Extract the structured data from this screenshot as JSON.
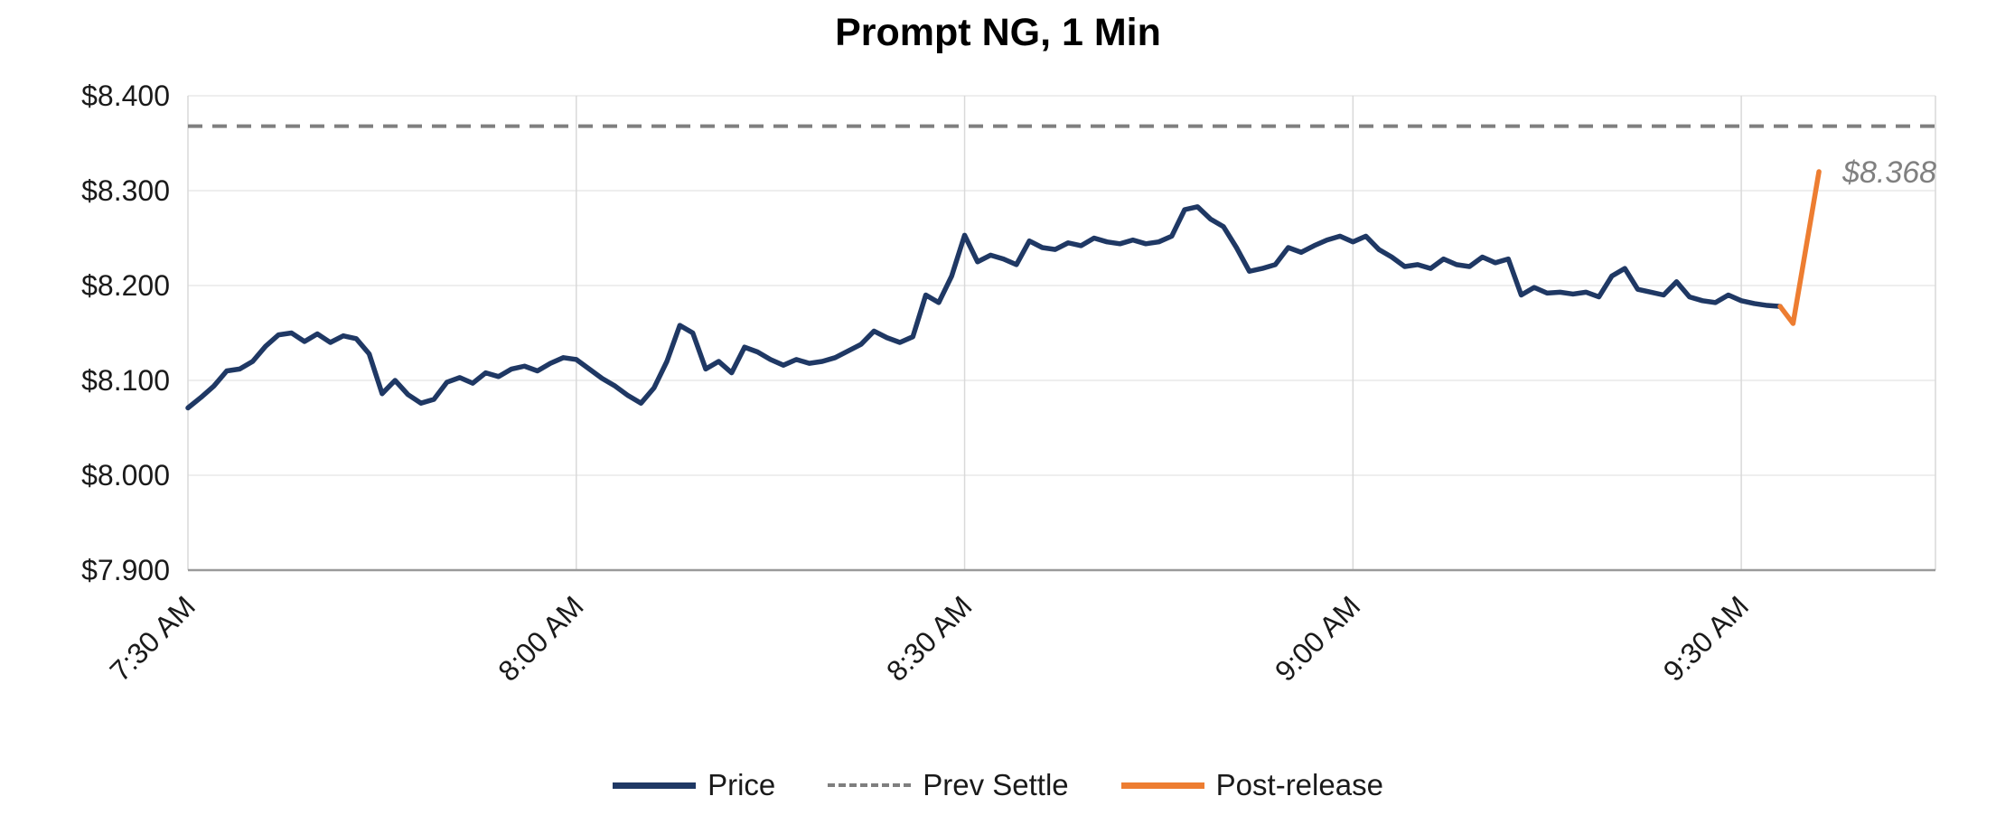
{
  "title": "Prompt NG, 1 Min",
  "colors": {
    "price": "#1F3864",
    "prev_settle": "#7F7F7F",
    "post_release": "#ED7D31",
    "gridline_v": "#D9D9D9",
    "gridline_h": "#E8E8E8",
    "axis": "#9A9A9A",
    "tick_text": "#1A1A1A",
    "annotation": "#808080"
  },
  "legend": {
    "items": [
      {
        "name": "price",
        "label": "Price",
        "style": "solid"
      },
      {
        "name": "prev_settle",
        "label": "Prev Settle",
        "style": "dashed"
      },
      {
        "name": "post_release",
        "label": "Post-release",
        "style": "solid"
      }
    ]
  },
  "annotation": {
    "text": "$8.368",
    "t_minutes": 126,
    "value": 8.32
  },
  "chart_data": {
    "type": "line",
    "title": "Prompt NG, 1 Min",
    "x_axis": {
      "unit": "minutes after 7:30 AM",
      "range": [
        0,
        135
      ],
      "ticks": [
        {
          "t": 0,
          "label": "7:30 AM"
        },
        {
          "t": 30,
          "label": "8:00 AM"
        },
        {
          "t": 60,
          "label": "8:30 AM"
        },
        {
          "t": 90,
          "label": "9:00 AM"
        },
        {
          "t": 120,
          "label": "9:30 AM"
        }
      ]
    },
    "y_axis": {
      "range": [
        7.9,
        8.4
      ],
      "tick_interval": 0.1,
      "ticks": [
        {
          "v": 7.9,
          "label": "$7.900"
        },
        {
          "v": 8.0,
          "label": "$8.000"
        },
        {
          "v": 8.1,
          "label": "$8.100"
        },
        {
          "v": 8.2,
          "label": "$8.200"
        },
        {
          "v": 8.3,
          "label": "$8.300"
        },
        {
          "v": 8.4,
          "label": "$8.400"
        }
      ]
    },
    "prev_settle_value": 8.368,
    "series": [
      {
        "name": "Price",
        "style": "solid",
        "t_start": 0,
        "t_step": 1,
        "values": [
          8.071,
          8.082,
          8.094,
          8.11,
          8.112,
          8.12,
          8.136,
          8.148,
          8.15,
          8.141,
          8.149,
          8.14,
          8.147,
          8.144,
          8.128,
          8.086,
          8.1,
          8.085,
          8.076,
          8.08,
          8.098,
          8.103,
          8.097,
          8.108,
          8.104,
          8.112,
          8.115,
          8.11,
          8.118,
          8.124,
          8.122,
          8.112,
          8.102,
          8.094,
          8.084,
          8.076,
          8.092,
          8.12,
          8.158,
          8.15,
          8.112,
          8.12,
          8.108,
          8.135,
          8.13,
          8.122,
          8.116,
          8.122,
          8.118,
          8.12,
          8.124,
          8.131,
          8.138,
          8.152,
          8.145,
          8.14,
          8.146,
          8.19,
          8.182,
          8.21,
          8.253,
          8.225,
          8.232,
          8.228,
          8.222,
          8.247,
          8.24,
          8.238,
          8.245,
          8.242,
          8.25,
          8.246,
          8.244,
          8.248,
          8.244,
          8.246,
          8.252,
          8.28,
          8.283,
          8.27,
          8.262,
          8.24,
          8.215,
          8.218,
          8.222,
          8.24,
          8.235,
          8.242,
          8.248,
          8.252,
          8.246,
          8.252,
          8.238,
          8.23,
          8.22,
          8.222,
          8.218,
          8.228,
          8.222,
          8.22,
          8.23,
          8.224,
          8.228,
          8.19,
          8.198,
          8.192,
          8.193,
          8.191,
          8.193,
          8.188,
          8.21,
          8.218,
          8.196,
          8.193,
          8.19,
          8.204,
          8.188,
          8.184,
          8.182,
          8.19,
          8.184,
          8.181,
          8.179,
          8.178
        ]
      },
      {
        "name": "Prev Settle",
        "style": "dashed",
        "value": 8.368
      },
      {
        "name": "Post-release",
        "style": "solid",
        "points_t": [
          123,
          124,
          125,
          126
        ],
        "points_v": [
          8.178,
          8.16,
          8.24,
          8.32
        ]
      }
    ]
  }
}
